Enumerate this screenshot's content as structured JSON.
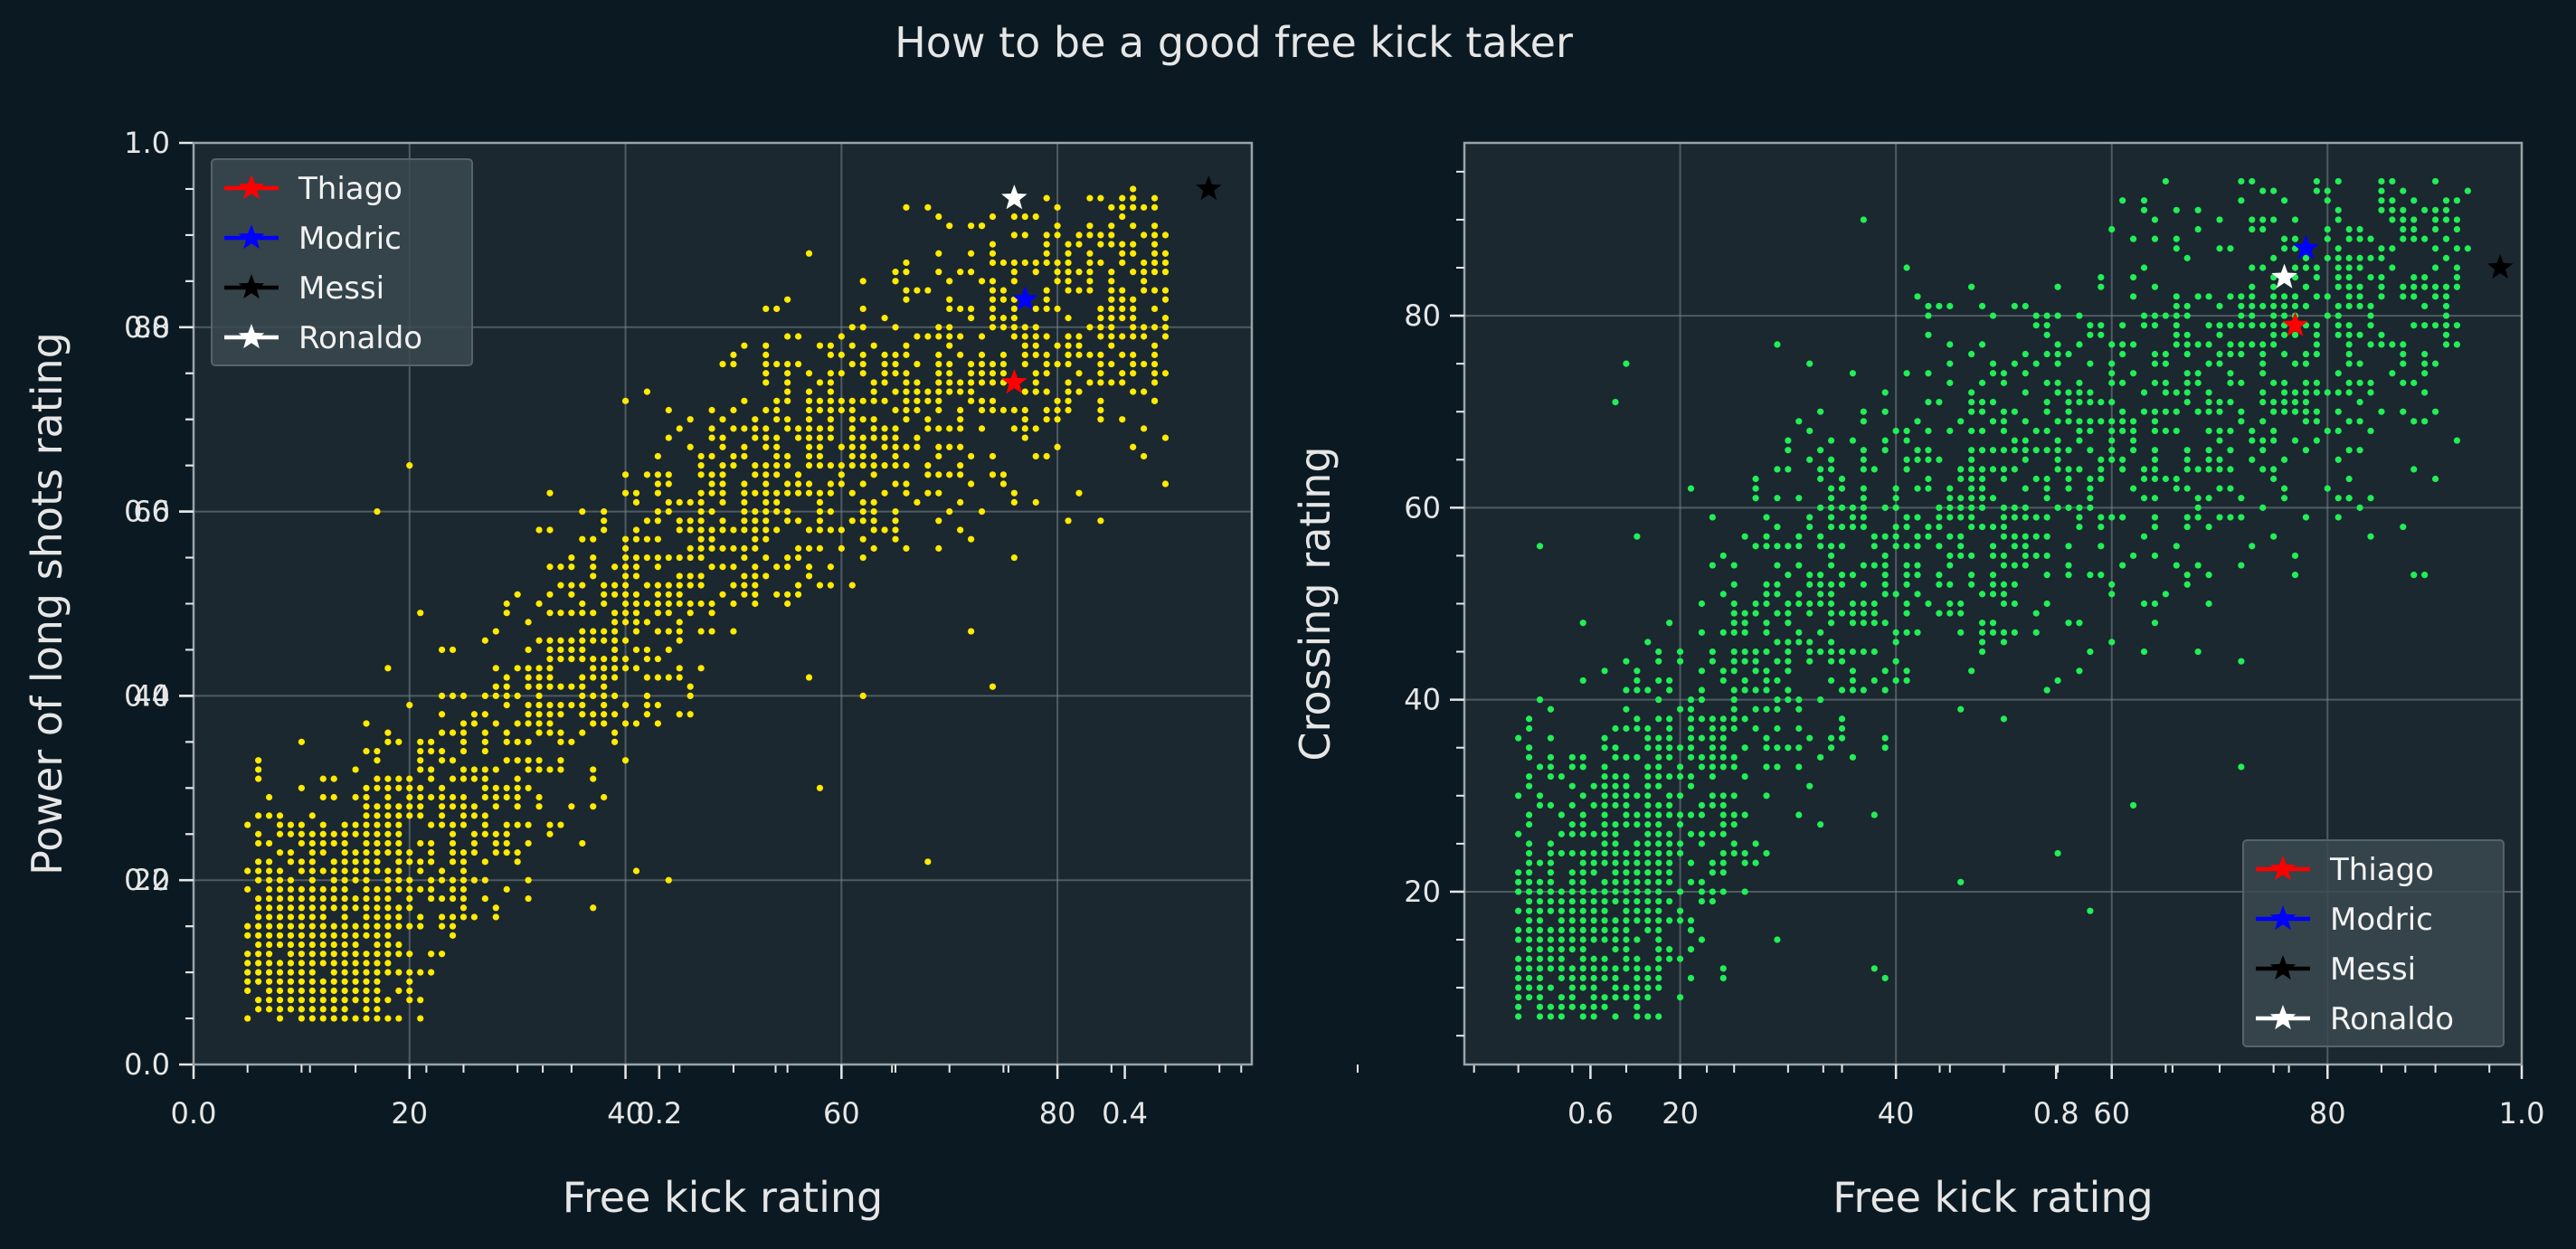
{
  "figure": {
    "title": "How to be a good free kick taker",
    "background": "#0b1a22",
    "axes_background": "#1b2830",
    "text_color": "#e6e6e6",
    "grid_color": "#7a868c",
    "ghost_ticks": [
      "0.0",
      "0.2",
      "0.4",
      "0.6",
      "0.8",
      "1.0"
    ]
  },
  "chart_data": [
    {
      "type": "scatter",
      "xlabel": "Free kick rating",
      "ylabel": "Power of long shots rating",
      "xticks": [
        20,
        40,
        60,
        80
      ],
      "yticks": [
        20,
        40,
        60,
        80
      ],
      "xlim": [
        0,
        98
      ],
      "ylim": [
        0,
        100
      ],
      "grid": true,
      "legend_position": "upper-left",
      "point_color": "#ffea00",
      "cloud": {
        "count": 2400,
        "pivots": [
          [
            10,
            10
          ],
          [
            20,
            20
          ],
          [
            35,
            42
          ],
          [
            50,
            60
          ],
          [
            65,
            70
          ],
          [
            80,
            82
          ]
        ],
        "spread_y": 8,
        "x_range": [
          5,
          90
        ],
        "y_range": [
          5,
          95
        ],
        "seed": 11
      },
      "outliers": [
        {
          "x": 10,
          "y": 16
        },
        {
          "x": 14,
          "y": 25
        },
        {
          "x": 17,
          "y": 60
        },
        {
          "x": 20,
          "y": 65
        },
        {
          "x": 37,
          "y": 17
        },
        {
          "x": 41,
          "y": 21
        },
        {
          "x": 44,
          "y": 20
        },
        {
          "x": 58,
          "y": 30
        },
        {
          "x": 57,
          "y": 42
        },
        {
          "x": 62,
          "y": 40
        },
        {
          "x": 68,
          "y": 22
        },
        {
          "x": 74,
          "y": 41
        },
        {
          "x": 72,
          "y": 47
        },
        {
          "x": 81,
          "y": 59
        },
        {
          "x": 86,
          "y": 75
        },
        {
          "x": 89,
          "y": 72
        },
        {
          "x": 71,
          "y": 86
        },
        {
          "x": 73,
          "y": 91
        },
        {
          "x": 85,
          "y": 90
        },
        {
          "x": 81,
          "y": 77
        }
      ],
      "highlights": [
        {
          "name": "Thiago",
          "x": 76,
          "y": 74,
          "color": "#ff0000"
        },
        {
          "name": "Modric",
          "x": 77,
          "y": 83,
          "color": "#0000ff"
        },
        {
          "name": "Messi",
          "x": 94,
          "y": 95,
          "color": "#000000"
        },
        {
          "name": "Ronaldo",
          "x": 76,
          "y": 94,
          "color": "#ffffff"
        }
      ]
    },
    {
      "type": "scatter",
      "xlabel": "Free kick rating",
      "ylabel": "Crossing rating",
      "xticks": [
        20,
        40,
        60,
        80
      ],
      "yticks": [
        20,
        40,
        60,
        80
      ],
      "xlim": [
        0,
        98
      ],
      "ylim": [
        2,
        98
      ],
      "grid": true,
      "legend_position": "lower-right",
      "point_color": "#22ee55",
      "cloud": {
        "count": 2300,
        "pivots": [
          [
            6,
            12
          ],
          [
            12,
            15
          ],
          [
            18,
            24
          ],
          [
            30,
            50
          ],
          [
            45,
            60
          ],
          [
            60,
            68
          ],
          [
            75,
            76
          ],
          [
            90,
            86
          ]
        ],
        "spread_y": 10,
        "x_range": [
          5,
          93
        ],
        "y_range": [
          7,
          94
        ],
        "seed": 29
      },
      "outliers": [
        {
          "x": 7,
          "y": 56
        },
        {
          "x": 19,
          "y": 42
        },
        {
          "x": 24,
          "y": 12
        },
        {
          "x": 27,
          "y": 23
        },
        {
          "x": 38,
          "y": 12
        },
        {
          "x": 39,
          "y": 11
        },
        {
          "x": 46,
          "y": 21
        },
        {
          "x": 55,
          "y": 24
        },
        {
          "x": 58,
          "y": 18
        },
        {
          "x": 62,
          "y": 29
        },
        {
          "x": 72,
          "y": 33
        },
        {
          "x": 82,
          "y": 61
        },
        {
          "x": 87,
          "y": 58
        },
        {
          "x": 88,
          "y": 53
        },
        {
          "x": 92,
          "y": 77
        },
        {
          "x": 66,
          "y": 91
        },
        {
          "x": 37,
          "y": 90
        },
        {
          "x": 15,
          "y": 75
        },
        {
          "x": 14,
          "y": 71
        },
        {
          "x": 11,
          "y": 48
        }
      ],
      "highlights": [
        {
          "name": "Thiago",
          "x": 77,
          "y": 79,
          "color": "#ff0000"
        },
        {
          "name": "Modric",
          "x": 78,
          "y": 87,
          "color": "#0000ff"
        },
        {
          "name": "Messi",
          "x": 96,
          "y": 85,
          "color": "#000000"
        },
        {
          "name": "Ronaldo",
          "x": 76,
          "y": 84,
          "color": "#ffffff"
        }
      ]
    }
  ]
}
